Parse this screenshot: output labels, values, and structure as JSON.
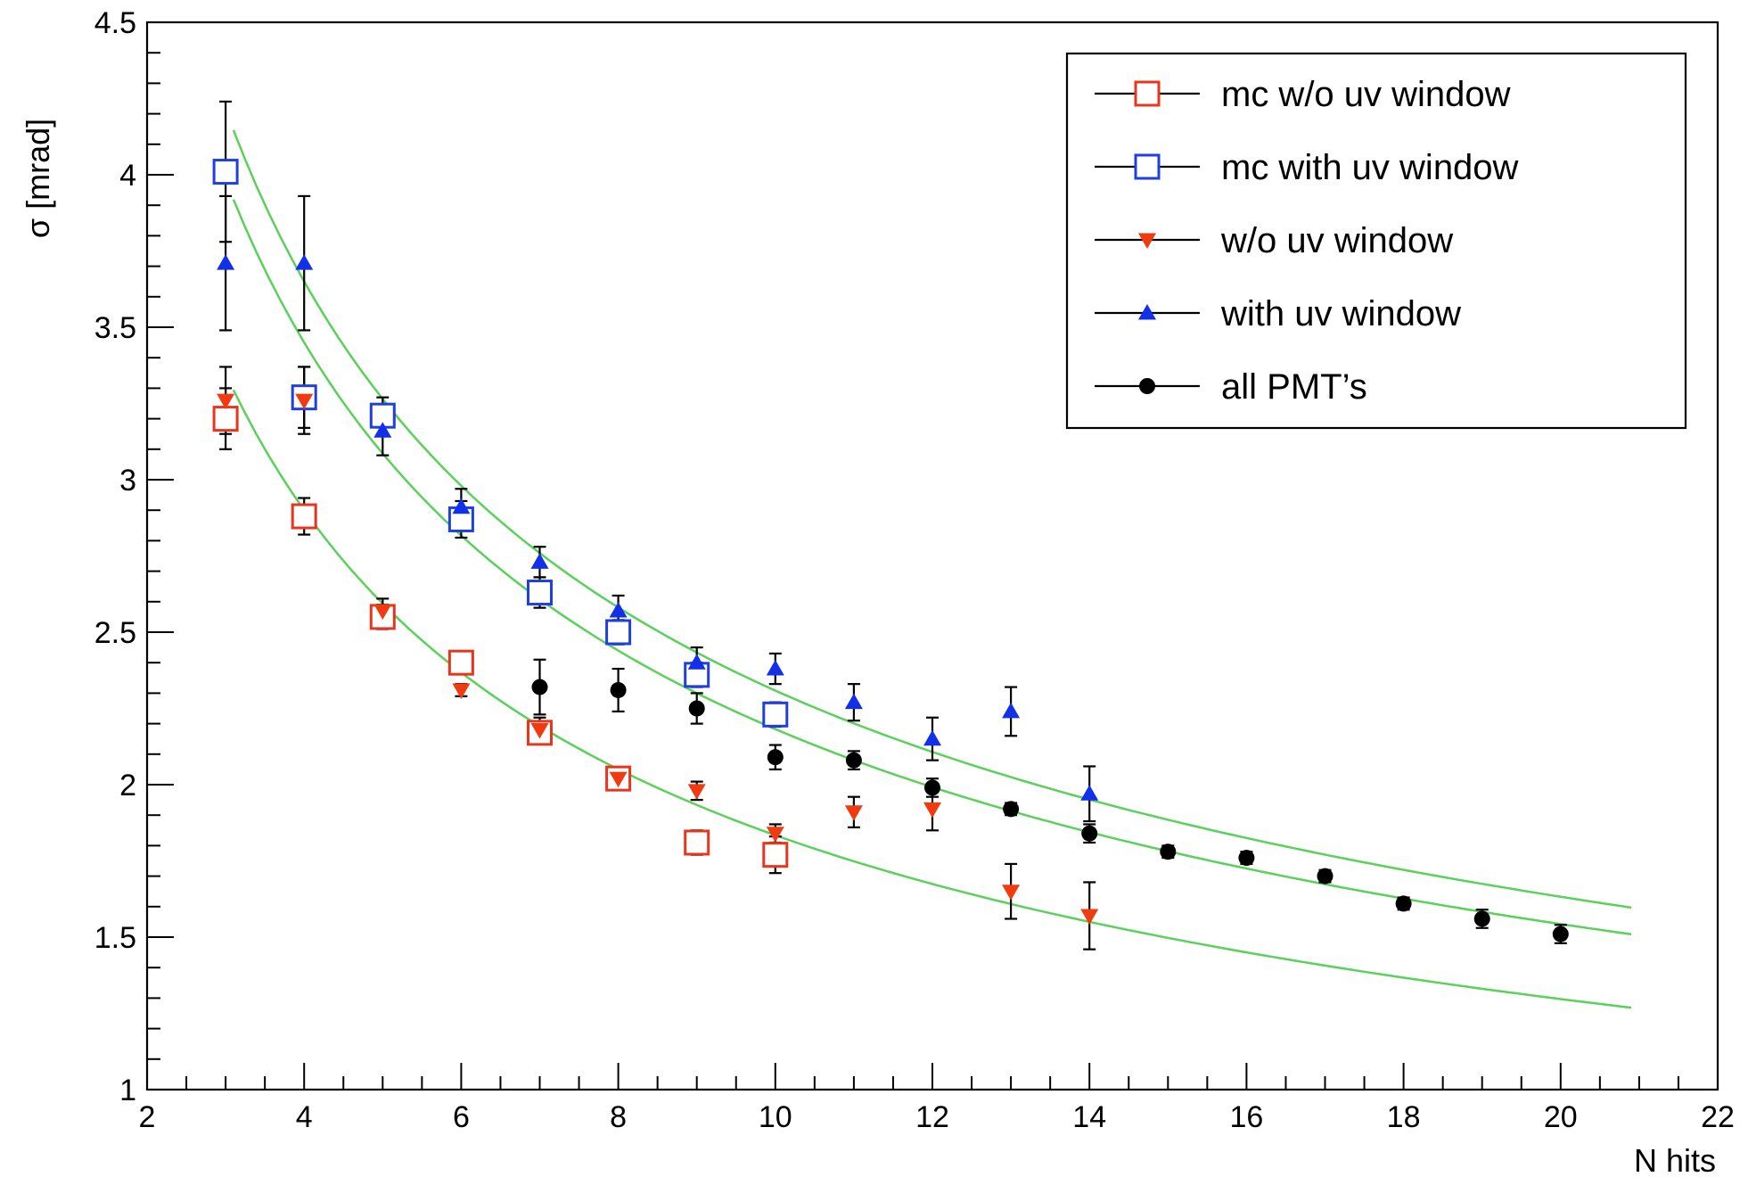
{
  "chart_data": {
    "type": "scatter",
    "xlabel": "N hits",
    "ylabel": "σ [mrad]",
    "xlim": [
      2,
      22
    ],
    "ylim": [
      1,
      4.5
    ],
    "x_major_ticks": [
      2,
      4,
      6,
      8,
      10,
      12,
      14,
      16,
      18,
      20,
      22
    ],
    "x_tick_labels": [
      "2",
      "4",
      "6",
      "8",
      "10",
      "12",
      "14",
      "16",
      "18",
      "20",
      "22"
    ],
    "y_major_ticks": [
      1,
      1.5,
      2,
      2.5,
      3,
      3.5,
      4,
      4.5
    ],
    "y_tick_labels": [
      "1",
      "1.5",
      "2",
      "2.5",
      "3",
      "3.5",
      "4",
      "4.5"
    ],
    "grid": false,
    "legend_position": "top-right",
    "series": [
      {
        "name": "mc w/o uv window",
        "marker": "open-square",
        "color": "#e8351d",
        "points": [
          {
            "x": 3,
            "y": 3.2,
            "err": 0.1
          },
          {
            "x": 4,
            "y": 2.88,
            "err": 0.06
          },
          {
            "x": 5,
            "y": 2.55,
            "err": 0.04
          },
          {
            "x": 6,
            "y": 2.4,
            "err": 0.03
          },
          {
            "x": 7,
            "y": 2.17,
            "err": 0.03
          },
          {
            "x": 8,
            "y": 2.02,
            "err": 0.02
          },
          {
            "x": 9,
            "y": 1.81,
            "err": 0.04
          },
          {
            "x": 10,
            "y": 1.77,
            "err": 0.06
          }
        ]
      },
      {
        "name": "mc with uv window",
        "marker": "open-square",
        "color": "#1f3fe0",
        "points": [
          {
            "x": 3,
            "y": 4.01,
            "err": 0.23
          },
          {
            "x": 4,
            "y": 3.27,
            "err": 0.1
          },
          {
            "x": 5,
            "y": 3.21,
            "err": 0.06
          },
          {
            "x": 6,
            "y": 2.87,
            "err": 0.06
          },
          {
            "x": 7,
            "y": 2.63,
            "err": 0.05
          },
          {
            "x": 8,
            "y": 2.5,
            "err": 0.04
          },
          {
            "x": 9,
            "y": 2.36,
            "err": 0.04
          },
          {
            "x": 10,
            "y": 2.23,
            "err": 0.04
          }
        ]
      },
      {
        "name": "w/o uv window",
        "marker": "filled-triangle-down",
        "color": "#f03a10",
        "points": [
          {
            "x": 3,
            "y": 3.26,
            "err": 0.11
          },
          {
            "x": 4,
            "y": 3.26,
            "err": 0.11
          },
          {
            "x": 5,
            "y": 2.57,
            "err": 0.04
          },
          {
            "x": 6,
            "y": 2.31,
            "err": 0.02
          },
          {
            "x": 7,
            "y": 2.18,
            "err": 0.04
          },
          {
            "x": 8,
            "y": 2.02,
            "err": 0.02
          },
          {
            "x": 9,
            "y": 1.98,
            "err": 0.03
          },
          {
            "x": 10,
            "y": 1.84,
            "err": 0.03
          },
          {
            "x": 11,
            "y": 1.91,
            "err": 0.05
          },
          {
            "x": 12,
            "y": 1.92,
            "err": 0.07
          },
          {
            "x": 13,
            "y": 1.65,
            "err": 0.09
          },
          {
            "x": 14,
            "y": 1.57,
            "err": 0.11
          }
        ]
      },
      {
        "name": "with uv window",
        "marker": "filled-triangle-up",
        "color": "#1230e8",
        "points": [
          {
            "x": 3,
            "y": 3.71,
            "err": 0.22
          },
          {
            "x": 4,
            "y": 3.71,
            "err": 0.22
          },
          {
            "x": 5,
            "y": 3.16,
            "err": 0.08
          },
          {
            "x": 6,
            "y": 2.91,
            "err": 0.06
          },
          {
            "x": 7,
            "y": 2.73,
            "err": 0.05
          },
          {
            "x": 8,
            "y": 2.57,
            "err": 0.05
          },
          {
            "x": 9,
            "y": 2.4,
            "err": 0.05
          },
          {
            "x": 10,
            "y": 2.38,
            "err": 0.05
          },
          {
            "x": 11,
            "y": 2.27,
            "err": 0.06
          },
          {
            "x": 12,
            "y": 2.15,
            "err": 0.07
          },
          {
            "x": 13,
            "y": 2.24,
            "err": 0.08
          },
          {
            "x": 14,
            "y": 1.97,
            "err": 0.09
          }
        ]
      },
      {
        "name": "all PMT’s",
        "marker": "filled-circle",
        "color": "#000000",
        "points": [
          {
            "x": 7,
            "y": 2.32,
            "err": 0.09
          },
          {
            "x": 8,
            "y": 2.31,
            "err": 0.07
          },
          {
            "x": 9,
            "y": 2.25,
            "err": 0.05
          },
          {
            "x": 10,
            "y": 2.09,
            "err": 0.04
          },
          {
            "x": 11,
            "y": 2.08,
            "err": 0.03
          },
          {
            "x": 12,
            "y": 1.99,
            "err": 0.03
          },
          {
            "x": 13,
            "y": 1.92,
            "err": 0.02
          },
          {
            "x": 14,
            "y": 1.84,
            "err": 0.03
          },
          {
            "x": 15,
            "y": 1.78,
            "err": 0.02
          },
          {
            "x": 16,
            "y": 1.76,
            "err": 0.02
          },
          {
            "x": 17,
            "y": 1.7,
            "err": 0.02
          },
          {
            "x": 18,
            "y": 1.61,
            "err": 0.02
          },
          {
            "x": 19,
            "y": 1.56,
            "err": 0.03
          },
          {
            "x": 20,
            "y": 1.51,
            "err": 0.03
          }
        ]
      }
    ],
    "fit_curves": {
      "form": "y = a / sqrt(x)",
      "color": "#5ad15a",
      "x_range": [
        3.1,
        20.9
      ],
      "coefficients": [
        7.3,
        6.9,
        5.8
      ]
    }
  }
}
